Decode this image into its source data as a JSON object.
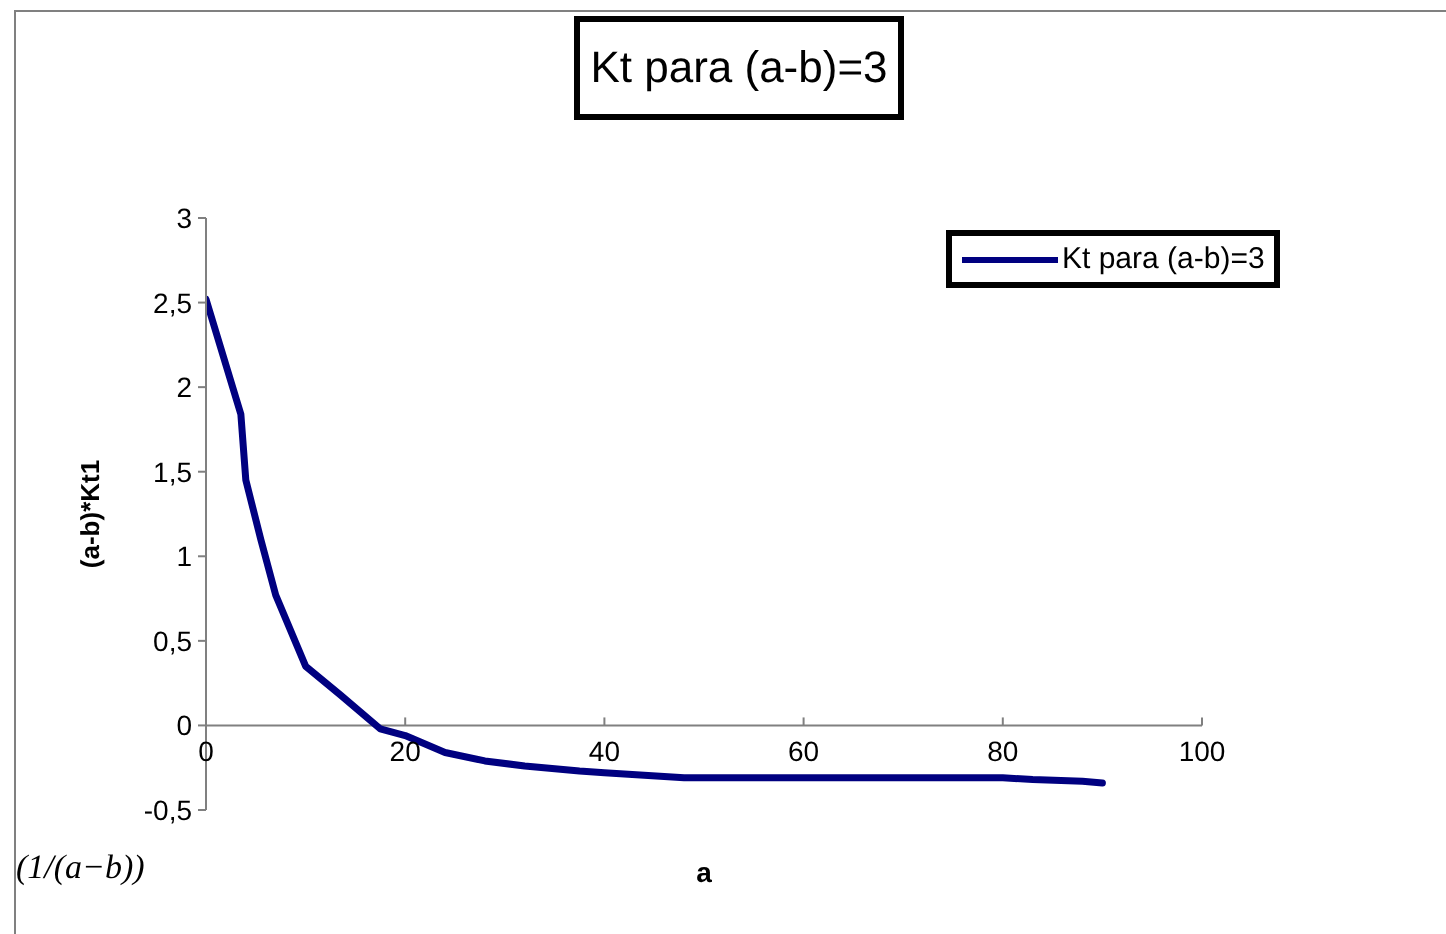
{
  "chart_data": {
    "type": "line",
    "title": "Kt para (a-b)=3",
    "xlabel": "a",
    "ylabel": "(a-b)*Kt1",
    "annotations": [
      "(1/(a−b))"
    ],
    "x": [
      0,
      3.5,
      4,
      5.5,
      7,
      10,
      13.5,
      17.5,
      20,
      24,
      28,
      32,
      37.5,
      40,
      48,
      60,
      70,
      80,
      83,
      88,
      90
    ],
    "series": [
      {
        "name": "Kt para (a-b)=3",
        "color": "#000080",
        "values": [
          2.52,
          1.84,
          1.45,
          1.1,
          0.77,
          0.35,
          0.18,
          -0.02,
          -0.06,
          -0.16,
          -0.21,
          -0.24,
          -0.27,
          -0.28,
          -0.31,
          -0.31,
          -0.31,
          -0.31,
          -0.32,
          -0.33,
          -0.34
        ]
      }
    ],
    "xlim": [
      0,
      100
    ],
    "xticks": [
      0,
      20,
      40,
      60,
      80,
      100
    ],
    "ylim": [
      -0.5,
      3
    ],
    "yticks": [
      {
        "value": -0.5,
        "label": "-0,5"
      },
      0,
      {
        "value": 0.5,
        "label": "0,5"
      },
      1,
      {
        "value": 1.5,
        "label": "1,5"
      },
      2,
      {
        "value": 2.5,
        "label": "2,5"
      },
      3
    ],
    "legend": "top right",
    "marker": "none",
    "line_style": "solid"
  }
}
